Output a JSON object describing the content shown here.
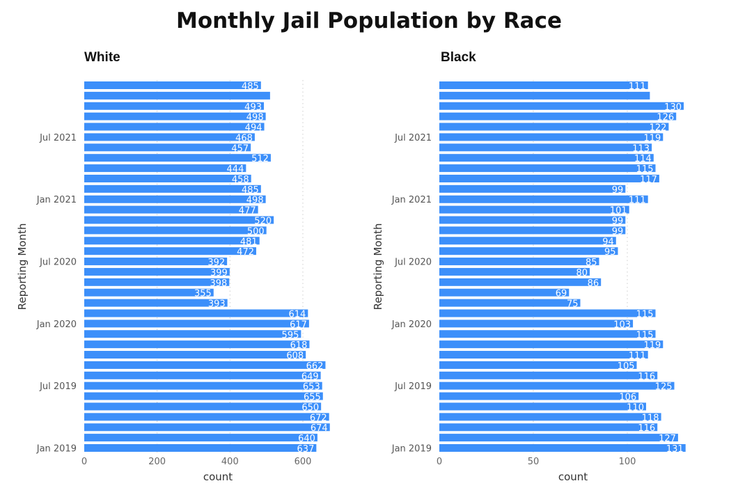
{
  "title": "Monthly Jail Population by Race",
  "chart_data": [
    {
      "type": "bar",
      "orientation": "horizontal",
      "title": "White",
      "xlabel": "count",
      "ylabel": "Reporting Month",
      "xlim": [
        0,
        700
      ],
      "xticks": [
        0,
        200,
        400,
        600
      ],
      "yticks": [
        {
          "label": "Jan 2019",
          "index": 0
        },
        {
          "label": "Jul 2019",
          "index": 6
        },
        {
          "label": "Jan 2020",
          "index": 12
        },
        {
          "label": "Jul 2020",
          "index": 18
        },
        {
          "label": "Jan 2021",
          "index": 24
        },
        {
          "label": "Jul 2021",
          "index": 30
        }
      ],
      "order": "chronological from Jan 2019 (bottom) to Dec 2021 (top)",
      "values": [
        637,
        640,
        674,
        672,
        650,
        655,
        653,
        649,
        662,
        608,
        618,
        595,
        617,
        614,
        393,
        355,
        398,
        399,
        392,
        472,
        481,
        500,
        520,
        477,
        498,
        485,
        458,
        444,
        512,
        457,
        468,
        494,
        498,
        493,
        510,
        485
      ],
      "data_labels": [
        "637",
        "640",
        "674",
        "672",
        "650",
        "655",
        "653",
        "649",
        "662",
        "608",
        "618",
        "595",
        "617",
        "614",
        "393",
        "355",
        "398",
        "399",
        "392",
        "472",
        "481",
        "500",
        "520",
        "477",
        "498",
        "485",
        "458",
        "444",
        "512",
        "457",
        "468",
        "494",
        "498",
        "493",
        null,
        "485"
      ],
      "grid": "vertical dotted"
    },
    {
      "type": "bar",
      "orientation": "horizontal",
      "title": "Black",
      "xlabel": "count",
      "ylabel": "Reporting Month",
      "xlim": [
        0,
        135
      ],
      "xticks": [
        0,
        50,
        100
      ],
      "yticks": [
        {
          "label": "Jan 2019",
          "index": 0
        },
        {
          "label": "Jul 2019",
          "index": 6
        },
        {
          "label": "Jan 2020",
          "index": 12
        },
        {
          "label": "Jul 2020",
          "index": 18
        },
        {
          "label": "Jan 2021",
          "index": 24
        },
        {
          "label": "Jul 2021",
          "index": 30
        }
      ],
      "order": "chronological from Jan 2019 (bottom) to Dec 2021 (top)",
      "values": [
        131,
        127,
        116,
        118,
        110,
        106,
        125,
        116,
        105,
        111,
        119,
        115,
        103,
        115,
        75,
        69,
        86,
        80,
        85,
        95,
        94,
        99,
        99,
        101,
        111,
        99,
        117,
        115,
        114,
        113,
        119,
        122,
        126,
        130,
        112,
        111
      ],
      "data_labels": [
        "131",
        "127",
        "116",
        "118",
        "110",
        "106",
        "125",
        "116",
        "105",
        "111",
        "119",
        "115",
        "103",
        "115",
        "75",
        "69",
        "86",
        "80",
        "85",
        "95",
        "94",
        "99",
        "99",
        "101",
        "111",
        "99",
        "117",
        "115",
        "114",
        "113",
        "119",
        "122",
        "126",
        "130",
        null,
        "111"
      ],
      "grid": "vertical dotted"
    }
  ],
  "colors": {
    "bar": "#3c8ffa",
    "label": "#ffffff",
    "axis_text": "#666666",
    "title": "#111111"
  }
}
